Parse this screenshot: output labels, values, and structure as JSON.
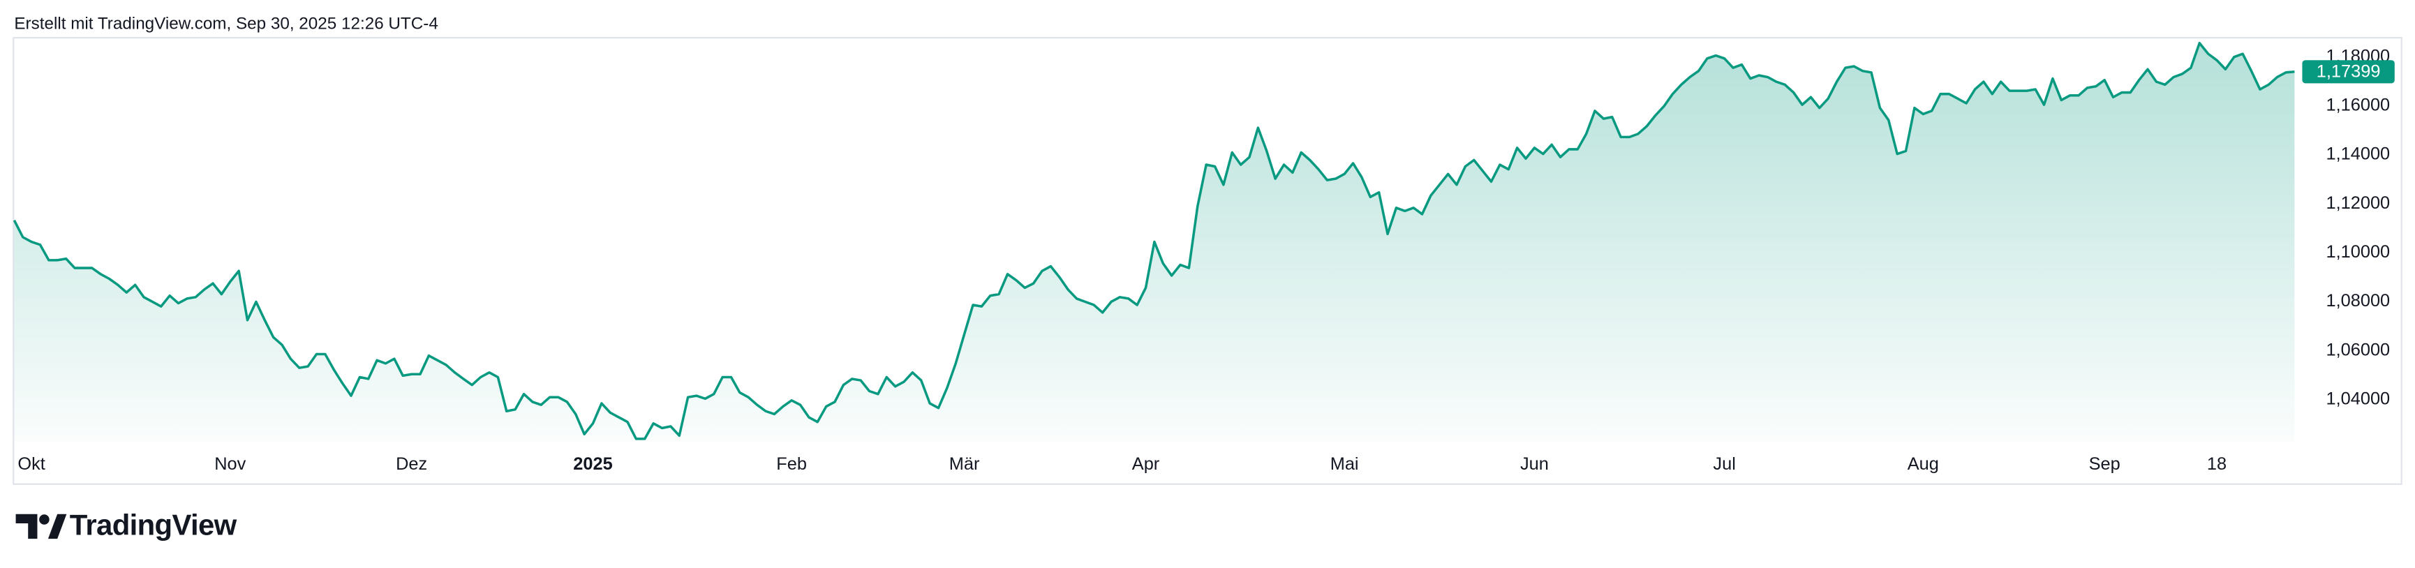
{
  "chart_data": {
    "type": "area",
    "title": "Erstellt mit TradingView.com, Sep 30, 2025 12:26 UTC-4",
    "color": "#089981",
    "values": [
      1.1133,
      1.1064,
      1.1045,
      1.1033,
      1.097,
      1.097,
      1.0976,
      1.0938,
      1.0938,
      1.0938,
      1.0913,
      1.0894,
      1.0869,
      1.0838,
      1.0869,
      1.0819,
      1.08,
      1.0781,
      1.0825,
      1.0794,
      1.0813,
      1.0819,
      1.085,
      1.0875,
      1.0831,
      1.0882,
      1.0926,
      1.0725,
      1.08,
      1.0725,
      1.0655,
      1.0624,
      1.0567,
      1.053,
      1.0536,
      1.0586,
      1.0586,
      1.0523,
      1.0467,
      1.0416,
      1.0492,
      1.0485,
      1.0561,
      1.0548,
      1.0567,
      1.0498,
      1.0504,
      1.0504,
      1.058,
      1.0561,
      1.0542,
      1.0511,
      1.0485,
      1.046,
      1.0492,
      1.0511,
      1.0492,
      1.0353,
      1.036,
      1.0423,
      1.0391,
      1.0379,
      1.041,
      1.041,
      1.0391,
      1.0341,
      1.0259,
      1.0303,
      1.0385,
      1.0347,
      1.0328,
      1.0309,
      1.024,
      1.024,
      1.0303,
      1.0284,
      1.0291,
      1.0253,
      1.041,
      1.0416,
      1.0404,
      1.0423,
      1.0492,
      1.0492,
      1.0429,
      1.041,
      1.0379,
      1.0353,
      1.0341,
      1.0372,
      1.0397,
      1.0379,
      1.0328,
      1.0309,
      1.0372,
      1.0391,
      1.046,
      1.0485,
      1.0479,
      1.0435,
      1.0423,
      1.0492,
      1.0454,
      1.0473,
      1.0511,
      1.0479,
      1.0385,
      1.0366,
      1.0448,
      1.0548,
      1.0668,
      1.0787,
      1.0781,
      1.0825,
      1.0831,
      1.0913,
      1.0888,
      1.0857,
      1.0875,
      1.0926,
      1.0945,
      1.0901,
      1.085,
      1.0813,
      1.08,
      1.0787,
      1.0756,
      1.08,
      1.0819,
      1.0813,
      1.0787,
      1.0857,
      1.1045,
      1.0957,
      1.0907,
      1.0951,
      1.0938,
      1.119,
      1.136,
      1.1353,
      1.1278,
      1.141,
      1.136,
      1.1391,
      1.1511,
      1.1416,
      1.1303,
      1.136,
      1.1328,
      1.141,
      1.1379,
      1.1341,
      1.1297,
      1.1303,
      1.1322,
      1.1366,
      1.1309,
      1.1228,
      1.1247,
      1.1077,
      1.1184,
      1.1171,
      1.1184,
      1.1158,
      1.1234,
      1.1278,
      1.1322,
      1.1278,
      1.1353,
      1.1379,
      1.1335,
      1.1291,
      1.136,
      1.1341,
      1.1429,
      1.1385,
      1.1429,
      1.1404,
      1.1442,
      1.1391,
      1.1423,
      1.1423,
      1.1486,
      1.158,
      1.1548,
      1.1555,
      1.1473,
      1.1473,
      1.1486,
      1.1517,
      1.1561,
      1.1599,
      1.1649,
      1.1687,
      1.1718,
      1.1743,
      1.1794,
      1.1806,
      1.1794,
      1.1756,
      1.1769,
      1.1712,
      1.1725,
      1.1718,
      1.1699,
      1.1687,
      1.1655,
      1.1605,
      1.1636,
      1.1592,
      1.163,
      1.1699,
      1.1756,
      1.1762,
      1.1743,
      1.1737,
      1.1592,
      1.1542,
      1.1404,
      1.1416,
      1.1592,
      1.1567,
      1.158,
      1.1649,
      1.1649,
      1.163,
      1.1611,
      1.1668,
      1.1699,
      1.1649,
      1.1699,
      1.1662,
      1.1662,
      1.1662,
      1.1668,
      1.1605,
      1.1712,
      1.1624,
      1.1643,
      1.1643,
      1.1674,
      1.168,
      1.1706,
      1.1636,
      1.1655,
      1.1655,
      1.1706,
      1.175,
      1.1699,
      1.1687,
      1.1718,
      1.1731,
      1.1756,
      1.1857,
      1.1813,
      1.1787,
      1.175,
      1.18,
      1.1813,
      1.1743,
      1.1668,
      1.1687,
      1.1718,
      1.1737,
      1.17399
    ],
    "last_label": "1,17399",
    "xlim": [
      0,
      264
    ],
    "xticks": [
      {
        "value": 2,
        "label": "Okt"
      },
      {
        "value": 25,
        "label": "Nov"
      },
      {
        "value": 46,
        "label": "Dez"
      },
      {
        "value": 67,
        "label": "2025"
      },
      {
        "value": 90,
        "label": "Feb"
      },
      {
        "value": 110,
        "label": "Mär"
      },
      {
        "value": 131,
        "label": "Apr"
      },
      {
        "value": 154,
        "label": "Mai"
      },
      {
        "value": 176,
        "label": "Jun"
      },
      {
        "value": 198,
        "label": "Jul"
      },
      {
        "value": 221,
        "label": "Aug"
      },
      {
        "value": 242,
        "label": "Sep"
      },
      {
        "value": 255,
        "label": "18"
      }
    ],
    "ylim": [
      1.0228,
      1.1882
    ],
    "yticks": [
      {
        "value": 1.04,
        "label": "1,04000"
      },
      {
        "value": 1.06,
        "label": "1,06000"
      },
      {
        "value": 1.08,
        "label": "1,08000"
      },
      {
        "value": 1.1,
        "label": "1,10000"
      },
      {
        "value": 1.12,
        "label": "1,12000"
      },
      {
        "value": 1.14,
        "label": "1,14000"
      },
      {
        "value": 1.16,
        "label": "1,16000"
      },
      {
        "value": 1.18,
        "label": "1,18000"
      }
    ],
    "grid": false
  },
  "brand": "TradingView"
}
